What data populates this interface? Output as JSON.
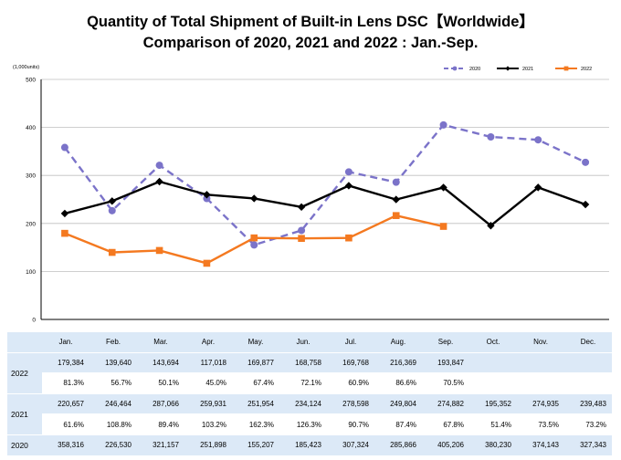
{
  "title_line1": "Quantity of Total Shipment of Built-in Lens DSC【Worldwide】",
  "title_line2": "Comparison of 2020, 2021 and 2022 : Jan.-Sep.",
  "chart_data": {
    "type": "line",
    "unit_label": "(1,000units)",
    "ylim": [
      0,
      500
    ],
    "y_ticks": [
      "0",
      "100",
      "200",
      "300",
      "400",
      "500"
    ],
    "grid": true,
    "legend_position": "top-right",
    "categories": [
      "Jan.",
      "Feb.",
      "Mar.",
      "Apr.",
      "May.",
      "Jun.",
      "Jul.",
      "Aug.",
      "Sep.",
      "Oct.",
      "Nov.",
      "Dec."
    ],
    "series": [
      {
        "name": "2020",
        "color": "#7b73c9",
        "dashed": true,
        "values": [
          358.316,
          226.53,
          321.157,
          251.898,
          155.207,
          185.423,
          307.324,
          285.866,
          405.206,
          380.23,
          374.143,
          327.343
        ]
      },
      {
        "name": "2021",
        "color": "#000000",
        "dashed": false,
        "values": [
          220.657,
          246.464,
          287.066,
          259.931,
          251.954,
          234.124,
          278.598,
          249.804,
          274.882,
          195.352,
          274.935,
          239.483
        ]
      },
      {
        "name": "2022",
        "color": "#f47920",
        "dashed": false,
        "values": [
          179.384,
          139.64,
          143.694,
          117.018,
          169.877,
          168.758,
          169.768,
          216.369,
          193.847,
          null,
          null,
          null
        ]
      }
    ]
  },
  "table": {
    "months": [
      "Jan.",
      "Feb.",
      "Mar.",
      "Apr.",
      "May.",
      "Jun.",
      "Jul.",
      "Aug.",
      "Sep.",
      "Oct.",
      "Nov.",
      "Dec."
    ],
    "rows": [
      {
        "year": "2022",
        "units": [
          "179,384",
          "139,640",
          "143,694",
          "117,018",
          "169,877",
          "168,758",
          "169,768",
          "216,369",
          "193,847",
          "",
          "",
          ""
        ],
        "pct": [
          "81.3%",
          "56.7%",
          "50.1%",
          "45.0%",
          "67.4%",
          "72.1%",
          "60.9%",
          "86.6%",
          "70.5%",
          "",
          "",
          ""
        ]
      },
      {
        "year": "2021",
        "units": [
          "220,657",
          "246,464",
          "287,066",
          "259,931",
          "251,954",
          "234,124",
          "278,598",
          "249,804",
          "274,882",
          "195,352",
          "274,935",
          "239,483"
        ],
        "pct": [
          "61.6%",
          "108.8%",
          "89.4%",
          "103.2%",
          "162.3%",
          "126.3%",
          "90.7%",
          "87.4%",
          "67.8%",
          "51.4%",
          "73.5%",
          "73.2%"
        ]
      },
      {
        "year": "2020",
        "units": [
          "358,316",
          "226,530",
          "321,157",
          "251,898",
          "155,207",
          "185,423",
          "307,324",
          "285,866",
          "405,206",
          "380,230",
          "374,143",
          "327,343"
        ]
      }
    ]
  }
}
